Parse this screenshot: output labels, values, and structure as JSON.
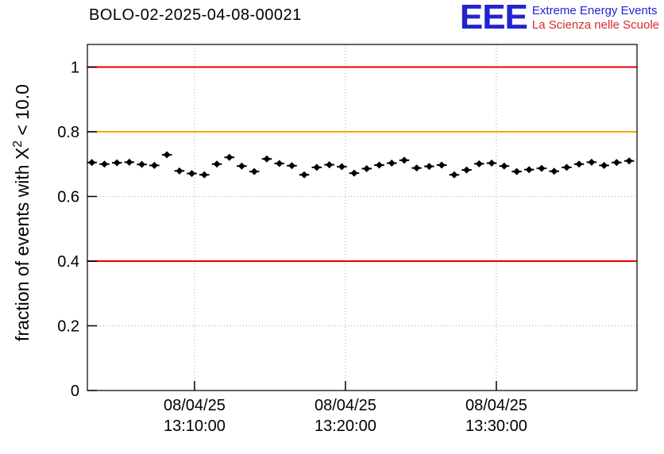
{
  "header": {
    "title": "BOLO-02-2025-04-08-00021",
    "logo": {
      "letters": "EEE",
      "line1": "Extreme Energy Events",
      "line2": "La Scienza nelle Scuole",
      "blue": "#2323cf",
      "red": "#d42a2a"
    }
  },
  "y_axis_label": {
    "prefix": "fraction of events with X",
    "sup": "2",
    "suffix": " < 10.0"
  },
  "chart_data": {
    "type": "scatter",
    "title": "BOLO-02-2025-04-08-00021",
    "xlabel": "",
    "ylabel": "fraction of events with X^2 < 10.0",
    "ylim": [
      0,
      1.07
    ],
    "yticks": [
      0,
      0.2,
      0.4,
      0.6,
      0.8,
      1
    ],
    "ytick_labels": [
      "0",
      "0.2",
      "0.4",
      "0.6",
      "0.8",
      "1"
    ],
    "x_minutes_range": [
      2.9,
      39.32
    ],
    "xticks_minutes": [
      10,
      20,
      30
    ],
    "xtick_labels": [
      [
        "08/04/25",
        "13:10:00"
      ],
      [
        "08/04/25",
        "13:20:00"
      ],
      [
        "08/04/25",
        "13:30:00"
      ]
    ],
    "grid": true,
    "grid_color": "#a8a8a8",
    "legend": "none",
    "reference_lines": [
      {
        "y": 1.0,
        "color": "#e60000",
        "name": "upper-limit-line"
      },
      {
        "y": 0.8,
        "color": "#ffa500",
        "name": "warning-line"
      },
      {
        "y": 0.4,
        "color": "#e60000",
        "name": "lower-limit-line"
      }
    ],
    "series": [
      {
        "name": "fraction-of-events",
        "marker": "diamond",
        "color": "#000000",
        "yerr": 0.008,
        "xerr_minutes": 0.33,
        "points": [
          [
            3.2,
            0.705
          ],
          [
            4.03,
            0.7
          ],
          [
            4.86,
            0.704
          ],
          [
            5.68,
            0.706
          ],
          [
            6.51,
            0.699
          ],
          [
            7.34,
            0.696
          ],
          [
            8.17,
            0.729
          ],
          [
            9.0,
            0.679
          ],
          [
            9.82,
            0.671
          ],
          [
            10.65,
            0.667
          ],
          [
            11.48,
            0.7
          ],
          [
            12.31,
            0.721
          ],
          [
            13.13,
            0.694
          ],
          [
            13.96,
            0.677
          ],
          [
            14.79,
            0.716
          ],
          [
            15.62,
            0.702
          ],
          [
            16.45,
            0.695
          ],
          [
            17.27,
            0.667
          ],
          [
            18.1,
            0.69
          ],
          [
            18.93,
            0.698
          ],
          [
            19.76,
            0.692
          ],
          [
            20.58,
            0.672
          ],
          [
            21.41,
            0.686
          ],
          [
            22.24,
            0.697
          ],
          [
            23.07,
            0.703
          ],
          [
            23.9,
            0.712
          ],
          [
            24.72,
            0.688
          ],
          [
            25.55,
            0.693
          ],
          [
            26.38,
            0.697
          ],
          [
            27.21,
            0.667
          ],
          [
            28.03,
            0.682
          ],
          [
            28.86,
            0.701
          ],
          [
            29.69,
            0.703
          ],
          [
            30.52,
            0.694
          ],
          [
            31.35,
            0.677
          ],
          [
            32.17,
            0.683
          ],
          [
            33.0,
            0.687
          ],
          [
            33.83,
            0.678
          ],
          [
            34.66,
            0.69
          ],
          [
            35.48,
            0.7
          ],
          [
            36.31,
            0.706
          ],
          [
            37.14,
            0.696
          ],
          [
            37.97,
            0.705
          ],
          [
            38.8,
            0.71
          ]
        ]
      }
    ]
  }
}
